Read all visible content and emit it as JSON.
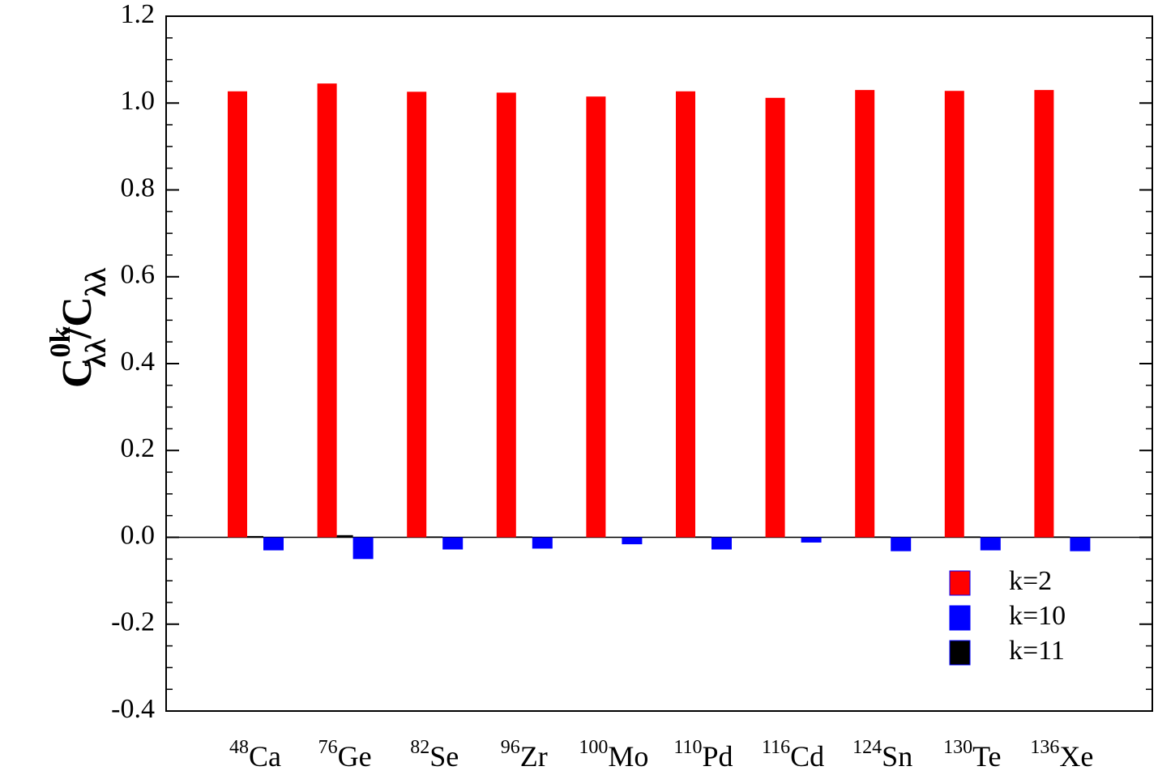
{
  "chart_data": {
    "type": "bar",
    "ylabel": {
      "base": "C",
      "sup": "0k",
      "sub": "λλ",
      "mid": "/C",
      "sub2": "λλ"
    },
    "categories": [
      {
        "mass": "48",
        "element": "Ca"
      },
      {
        "mass": "76",
        "element": "Ge"
      },
      {
        "mass": "82",
        "element": "Se"
      },
      {
        "mass": "96",
        "element": "Zr"
      },
      {
        "mass": "100",
        "element": "Mo"
      },
      {
        "mass": "110",
        "element": "Pd"
      },
      {
        "mass": "116",
        "element": "Cd"
      },
      {
        "mass": "124",
        "element": "Sn"
      },
      {
        "mass": "130",
        "element": "Te"
      },
      {
        "mass": "136",
        "element": "Xe"
      }
    ],
    "series": [
      {
        "name": "k=2",
        "color": "#ff0000",
        "values": [
          1.027,
          1.045,
          1.026,
          1.024,
          1.015,
          1.027,
          1.012,
          1.03,
          1.028,
          1.03
        ]
      },
      {
        "name": "k=10",
        "color": "#0000ff",
        "values": [
          -0.03,
          -0.05,
          -0.028,
          -0.026,
          -0.016,
          -0.028,
          -0.012,
          -0.032,
          -0.03,
          -0.032
        ]
      },
      {
        "name": "k=11",
        "color": "#000000",
        "values": [
          0.003,
          0.005,
          0.002,
          0.002,
          0.001,
          0.002,
          0.001,
          0.002,
          0.002,
          0.002
        ]
      }
    ],
    "ylim": [
      -0.4,
      1.2
    ],
    "yticks": [
      {
        "value": -0.4,
        "label": "-0.4"
      },
      {
        "value": -0.2,
        "label": "-0.2"
      },
      {
        "value": 0,
        "label": "0.0"
      },
      0.2,
      0.4,
      0.6,
      0.8,
      {
        "value": 1,
        "label": "1.0"
      },
      1.2
    ],
    "legend": "lower right"
  }
}
